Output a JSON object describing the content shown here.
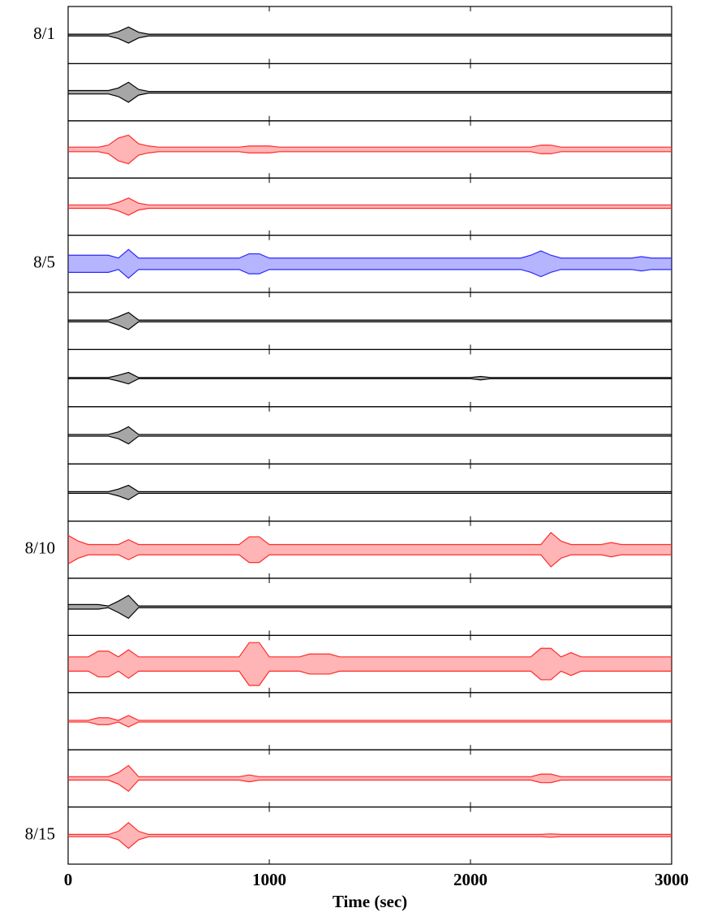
{
  "chart_data": {
    "type": "line",
    "xlabel": "Time (sec)",
    "xlim": [
      0,
      3000
    ],
    "xticks": [
      0,
      1000,
      2000,
      3000
    ],
    "ylim": [
      -1,
      1
    ],
    "x": [
      0,
      50,
      100,
      150,
      200,
      250,
      300,
      350,
      400,
      450,
      500,
      550,
      600,
      650,
      700,
      750,
      800,
      850,
      900,
      950,
      1000,
      1050,
      1100,
      1150,
      1200,
      1250,
      1300,
      1350,
      1400,
      1450,
      1500,
      1550,
      1600,
      1650,
      1700,
      1750,
      1800,
      1850,
      1900,
      1950,
      2000,
      2050,
      2100,
      2150,
      2200,
      2250,
      2300,
      2350,
      2400,
      2450,
      2500,
      2550,
      2600,
      2650,
      2700,
      2750,
      2800,
      2850,
      2900,
      2950,
      3000
    ],
    "series": [
      {
        "name": "8/1",
        "color": "#000000",
        "values": [
          0.03,
          0.03,
          0.03,
          0.03,
          0.03,
          0.12,
          0.28,
          0.1,
          0.03,
          0.03,
          0.03,
          0.03,
          0.03,
          0.03,
          0.03,
          0.03,
          0.03,
          0.03,
          0.03,
          0.03,
          0.03,
          0.03,
          0.03,
          0.03,
          0.03,
          0.03,
          0.03,
          0.03,
          0.03,
          0.03,
          0.03,
          0.03,
          0.03,
          0.03,
          0.03,
          0.03,
          0.03,
          0.03,
          0.03,
          0.03,
          0.03,
          0.03,
          0.03,
          0.03,
          0.03,
          0.03,
          0.03,
          0.03,
          0.03,
          0.03,
          0.03,
          0.03,
          0.03,
          0.03,
          0.03,
          0.03,
          0.03,
          0.03,
          0.03,
          0.03,
          0.03
        ]
      },
      {
        "color": "#000000",
        "values": [
          0.06,
          0.06,
          0.06,
          0.06,
          0.06,
          0.15,
          0.35,
          0.1,
          0.03,
          0.03,
          0.03,
          0.03,
          0.03,
          0.03,
          0.03,
          0.03,
          0.03,
          0.03,
          0.03,
          0.03,
          0.03,
          0.03,
          0.03,
          0.03,
          0.03,
          0.03,
          0.03,
          0.03,
          0.03,
          0.03,
          0.03,
          0.03,
          0.03,
          0.03,
          0.03,
          0.03,
          0.03,
          0.03,
          0.03,
          0.03,
          0.03,
          0.03,
          0.03,
          0.03,
          0.03,
          0.03,
          0.03,
          0.03,
          0.03,
          0.03,
          0.03,
          0.03,
          0.03,
          0.03,
          0.03,
          0.03,
          0.03,
          0.03,
          0.03,
          0.03,
          0.03
        ]
      },
      {
        "color": "#ff2a2a",
        "values": [
          0.08,
          0.08,
          0.08,
          0.08,
          0.15,
          0.4,
          0.5,
          0.2,
          0.12,
          0.08,
          0.08,
          0.08,
          0.08,
          0.08,
          0.08,
          0.08,
          0.08,
          0.08,
          0.12,
          0.12,
          0.12,
          0.08,
          0.08,
          0.08,
          0.08,
          0.08,
          0.08,
          0.08,
          0.08,
          0.08,
          0.08,
          0.08,
          0.08,
          0.08,
          0.08,
          0.08,
          0.08,
          0.08,
          0.08,
          0.08,
          0.08,
          0.08,
          0.08,
          0.08,
          0.08,
          0.08,
          0.08,
          0.15,
          0.15,
          0.08,
          0.08,
          0.08,
          0.08,
          0.08,
          0.08,
          0.08,
          0.08,
          0.08,
          0.08,
          0.08,
          0.08
        ]
      },
      {
        "color": "#ff2a2a",
        "values": [
          0.06,
          0.06,
          0.06,
          0.06,
          0.06,
          0.15,
          0.3,
          0.12,
          0.06,
          0.06,
          0.06,
          0.06,
          0.06,
          0.06,
          0.06,
          0.06,
          0.06,
          0.06,
          0.06,
          0.06,
          0.06,
          0.06,
          0.06,
          0.06,
          0.06,
          0.06,
          0.06,
          0.06,
          0.06,
          0.06,
          0.06,
          0.06,
          0.06,
          0.06,
          0.06,
          0.06,
          0.06,
          0.06,
          0.06,
          0.06,
          0.06,
          0.06,
          0.06,
          0.06,
          0.06,
          0.06,
          0.06,
          0.06,
          0.06,
          0.06,
          0.06,
          0.06,
          0.06,
          0.06,
          0.06,
          0.06,
          0.06,
          0.06,
          0.06,
          0.06,
          0.06
        ]
      },
      {
        "name": "8/5",
        "color": "#2a2aff",
        "values": [
          0.3,
          0.3,
          0.3,
          0.3,
          0.3,
          0.2,
          0.5,
          0.2,
          0.2,
          0.2,
          0.2,
          0.2,
          0.2,
          0.2,
          0.2,
          0.2,
          0.2,
          0.2,
          0.35,
          0.35,
          0.2,
          0.2,
          0.2,
          0.2,
          0.2,
          0.2,
          0.2,
          0.2,
          0.2,
          0.2,
          0.2,
          0.2,
          0.2,
          0.2,
          0.2,
          0.2,
          0.2,
          0.2,
          0.2,
          0.2,
          0.2,
          0.2,
          0.2,
          0.2,
          0.2,
          0.2,
          0.3,
          0.45,
          0.3,
          0.2,
          0.2,
          0.2,
          0.2,
          0.2,
          0.2,
          0.2,
          0.2,
          0.25,
          0.2,
          0.2,
          0.2
        ]
      },
      {
        "color": "#000000",
        "values": [
          0.03,
          0.03,
          0.03,
          0.03,
          0.03,
          0.15,
          0.3,
          0.03,
          0.03,
          0.03,
          0.03,
          0.03,
          0.03,
          0.03,
          0.03,
          0.03,
          0.03,
          0.03,
          0.03,
          0.03,
          0.03,
          0.03,
          0.03,
          0.03,
          0.03,
          0.03,
          0.03,
          0.03,
          0.03,
          0.03,
          0.03,
          0.03,
          0.03,
          0.03,
          0.03,
          0.03,
          0.03,
          0.03,
          0.03,
          0.03,
          0.03,
          0.03,
          0.03,
          0.03,
          0.03,
          0.03,
          0.03,
          0.03,
          0.03,
          0.03,
          0.03,
          0.03,
          0.03,
          0.03,
          0.03,
          0.03,
          0.03,
          0.03,
          0.03,
          0.03,
          0.03
        ]
      },
      {
        "color": "#000000",
        "values": [
          0.02,
          0.02,
          0.02,
          0.02,
          0.02,
          0.1,
          0.2,
          0.02,
          0.02,
          0.02,
          0.02,
          0.02,
          0.02,
          0.02,
          0.02,
          0.02,
          0.02,
          0.02,
          0.02,
          0.02,
          0.02,
          0.02,
          0.02,
          0.02,
          0.02,
          0.02,
          0.02,
          0.02,
          0.02,
          0.02,
          0.02,
          0.02,
          0.02,
          0.02,
          0.02,
          0.02,
          0.02,
          0.02,
          0.02,
          0.02,
          0.02,
          0.06,
          0.02,
          0.02,
          0.02,
          0.02,
          0.02,
          0.02,
          0.02,
          0.02,
          0.02,
          0.02,
          0.02,
          0.02,
          0.02,
          0.02,
          0.02,
          0.02,
          0.02,
          0.02,
          0.02
        ]
      },
      {
        "color": "#000000",
        "values": [
          0.03,
          0.03,
          0.03,
          0.03,
          0.03,
          0.12,
          0.3,
          0.03,
          0.03,
          0.03,
          0.03,
          0.03,
          0.03,
          0.03,
          0.03,
          0.03,
          0.03,
          0.03,
          0.03,
          0.03,
          0.03,
          0.03,
          0.03,
          0.03,
          0.03,
          0.03,
          0.03,
          0.03,
          0.03,
          0.03,
          0.03,
          0.03,
          0.03,
          0.03,
          0.03,
          0.03,
          0.03,
          0.03,
          0.03,
          0.03,
          0.03,
          0.03,
          0.03,
          0.03,
          0.03,
          0.03,
          0.03,
          0.03,
          0.03,
          0.03,
          0.03,
          0.03,
          0.03,
          0.03,
          0.03,
          0.03,
          0.03,
          0.03,
          0.03,
          0.03,
          0.03
        ]
      },
      {
        "color": "#000000",
        "values": [
          0.03,
          0.03,
          0.03,
          0.03,
          0.03,
          0.12,
          0.25,
          0.03,
          0.03,
          0.03,
          0.03,
          0.03,
          0.03,
          0.03,
          0.03,
          0.03,
          0.03,
          0.03,
          0.03,
          0.03,
          0.03,
          0.03,
          0.03,
          0.03,
          0.03,
          0.03,
          0.03,
          0.03,
          0.03,
          0.03,
          0.03,
          0.03,
          0.03,
          0.03,
          0.03,
          0.03,
          0.03,
          0.03,
          0.03,
          0.03,
          0.03,
          0.03,
          0.03,
          0.03,
          0.03,
          0.03,
          0.03,
          0.03,
          0.03,
          0.03,
          0.03,
          0.03,
          0.03,
          0.03,
          0.03,
          0.03,
          0.03,
          0.03,
          0.03,
          0.03,
          0.03
        ]
      },
      {
        "name": "8/10",
        "color": "#ff2a2a",
        "values": [
          0.5,
          0.3,
          0.18,
          0.18,
          0.18,
          0.18,
          0.35,
          0.18,
          0.18,
          0.18,
          0.18,
          0.18,
          0.18,
          0.18,
          0.18,
          0.18,
          0.18,
          0.18,
          0.45,
          0.45,
          0.18,
          0.18,
          0.18,
          0.18,
          0.18,
          0.18,
          0.18,
          0.18,
          0.18,
          0.18,
          0.18,
          0.18,
          0.18,
          0.18,
          0.18,
          0.18,
          0.18,
          0.18,
          0.18,
          0.18,
          0.18,
          0.18,
          0.18,
          0.18,
          0.18,
          0.18,
          0.18,
          0.18,
          0.6,
          0.3,
          0.18,
          0.18,
          0.18,
          0.18,
          0.25,
          0.18,
          0.18,
          0.18,
          0.18,
          0.18,
          0.18
        ]
      },
      {
        "color": "#000000",
        "values": [
          0.08,
          0.08,
          0.08,
          0.08,
          0.03,
          0.2,
          0.4,
          0.03,
          0.03,
          0.03,
          0.03,
          0.03,
          0.03,
          0.03,
          0.03,
          0.03,
          0.03,
          0.03,
          0.03,
          0.03,
          0.03,
          0.03,
          0.03,
          0.03,
          0.03,
          0.03,
          0.03,
          0.03,
          0.03,
          0.03,
          0.03,
          0.03,
          0.03,
          0.03,
          0.03,
          0.03,
          0.03,
          0.03,
          0.03,
          0.03,
          0.03,
          0.03,
          0.03,
          0.03,
          0.03,
          0.03,
          0.03,
          0.03,
          0.03,
          0.03,
          0.03,
          0.03,
          0.03,
          0.03,
          0.03,
          0.03,
          0.03,
          0.03,
          0.03,
          0.03,
          0.03
        ]
      },
      {
        "color": "#ff2a2a",
        "values": [
          0.25,
          0.25,
          0.25,
          0.45,
          0.45,
          0.25,
          0.5,
          0.25,
          0.25,
          0.25,
          0.25,
          0.25,
          0.25,
          0.25,
          0.25,
          0.25,
          0.25,
          0.25,
          0.75,
          0.75,
          0.25,
          0.25,
          0.25,
          0.25,
          0.35,
          0.35,
          0.35,
          0.25,
          0.25,
          0.25,
          0.25,
          0.25,
          0.25,
          0.25,
          0.25,
          0.25,
          0.25,
          0.25,
          0.25,
          0.25,
          0.25,
          0.25,
          0.25,
          0.25,
          0.25,
          0.25,
          0.25,
          0.55,
          0.55,
          0.25,
          0.4,
          0.25,
          0.25,
          0.25,
          0.25,
          0.25,
          0.25,
          0.25,
          0.25,
          0.25,
          0.25
        ]
      },
      {
        "color": "#ff2a2a",
        "values": [
          0.03,
          0.03,
          0.03,
          0.12,
          0.12,
          0.03,
          0.2,
          0.03,
          0.03,
          0.03,
          0.03,
          0.03,
          0.03,
          0.03,
          0.03,
          0.03,
          0.03,
          0.03,
          0.03,
          0.03,
          0.03,
          0.03,
          0.03,
          0.03,
          0.03,
          0.03,
          0.03,
          0.03,
          0.03,
          0.03,
          0.03,
          0.03,
          0.03,
          0.03,
          0.03,
          0.03,
          0.03,
          0.03,
          0.03,
          0.03,
          0.03,
          0.03,
          0.03,
          0.03,
          0.03,
          0.03,
          0.03,
          0.03,
          0.03,
          0.03,
          0.03,
          0.03,
          0.03,
          0.03,
          0.03,
          0.03,
          0.03,
          0.03,
          0.03,
          0.03,
          0.03
        ]
      },
      {
        "color": "#ff2a2a",
        "values": [
          0.06,
          0.06,
          0.06,
          0.06,
          0.06,
          0.2,
          0.45,
          0.06,
          0.06,
          0.06,
          0.06,
          0.06,
          0.06,
          0.06,
          0.06,
          0.06,
          0.06,
          0.06,
          0.12,
          0.06,
          0.06,
          0.06,
          0.06,
          0.06,
          0.06,
          0.06,
          0.06,
          0.06,
          0.06,
          0.06,
          0.06,
          0.06,
          0.06,
          0.06,
          0.06,
          0.06,
          0.06,
          0.06,
          0.06,
          0.06,
          0.06,
          0.06,
          0.06,
          0.06,
          0.06,
          0.06,
          0.06,
          0.15,
          0.15,
          0.06,
          0.06,
          0.06,
          0.06,
          0.06,
          0.06,
          0.06,
          0.06,
          0.06,
          0.06,
          0.06,
          0.06
        ]
      },
      {
        "name": "8/15",
        "color": "#ff2a2a",
        "values": [
          0.04,
          0.04,
          0.04,
          0.04,
          0.04,
          0.15,
          0.45,
          0.15,
          0.04,
          0.04,
          0.04,
          0.04,
          0.04,
          0.04,
          0.04,
          0.04,
          0.04,
          0.04,
          0.04,
          0.04,
          0.04,
          0.04,
          0.04,
          0.04,
          0.04,
          0.04,
          0.04,
          0.04,
          0.04,
          0.04,
          0.04,
          0.04,
          0.04,
          0.04,
          0.04,
          0.04,
          0.04,
          0.04,
          0.04,
          0.04,
          0.04,
          0.04,
          0.04,
          0.04,
          0.04,
          0.04,
          0.04,
          0.04,
          0.06,
          0.04,
          0.04,
          0.04,
          0.04,
          0.04,
          0.04,
          0.04,
          0.04,
          0.04,
          0.04,
          0.04,
          0.04
        ]
      }
    ]
  }
}
